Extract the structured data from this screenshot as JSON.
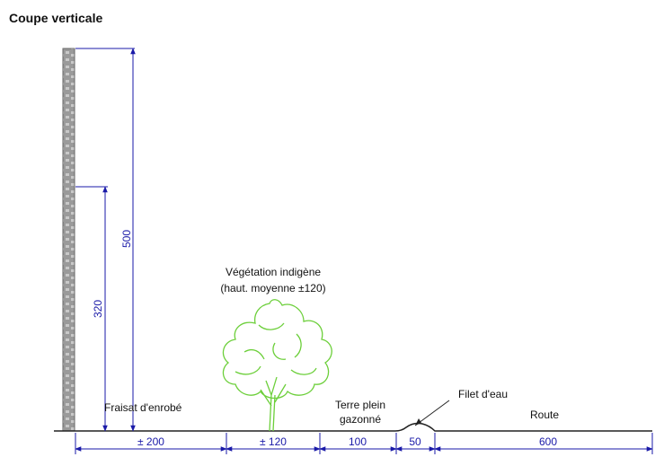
{
  "title": "Coupe verticale",
  "labels": {
    "vegetation_line1": "Végétation indigène",
    "vegetation_line2": "(haut. moyenne ±120)",
    "fraisat": "Fraisat d'enrobé",
    "terre_line1": "Terre plein",
    "terre_line2": "gazonné",
    "filet": "Filet d'eau",
    "route": "Route"
  },
  "vertical_dimensions": {
    "total_height": "500",
    "partial_height": "320"
  },
  "horizontal_dimensions": [
    "± 200",
    "± 120",
    "100",
    "50",
    "600"
  ],
  "colors": {
    "dimension": "#1a1aa8",
    "vegetation": "#6ccf3a",
    "wall": "#8a8a8a",
    "ground": "#222222"
  }
}
